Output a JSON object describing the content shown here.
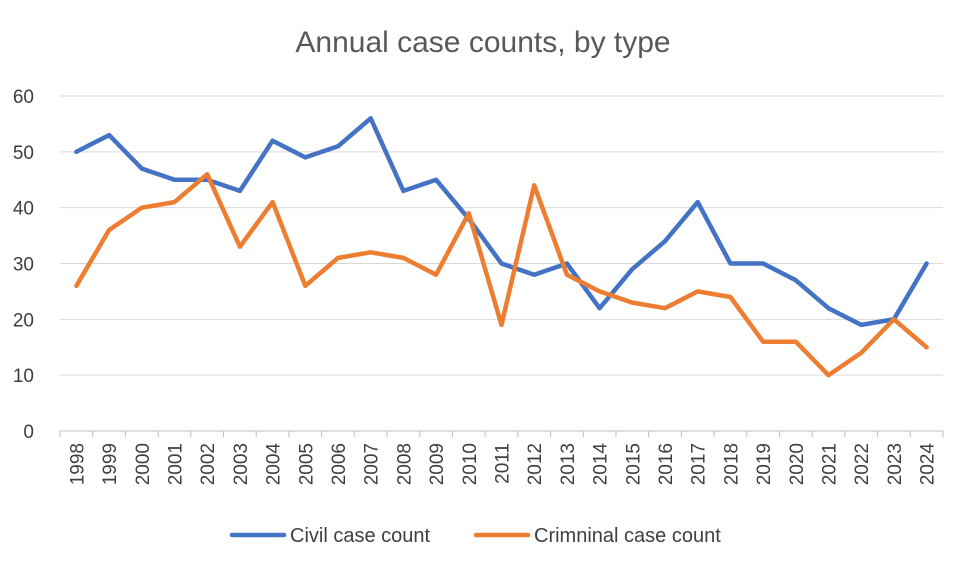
{
  "chart_data": {
    "type": "line",
    "title": "Annual case counts, by type",
    "xlabel": "",
    "ylabel": "",
    "ylim": [
      0,
      60
    ],
    "yticks": [
      0,
      10,
      20,
      30,
      40,
      50,
      60
    ],
    "grid": true,
    "legend_position": "bottom",
    "categories": [
      "1998",
      "1999",
      "2000",
      "2001",
      "2002",
      "2003",
      "2004",
      "2005",
      "2006",
      "2007",
      "2008",
      "2009",
      "2010",
      "2011",
      "2012",
      "2013",
      "2014",
      "2015",
      "2016",
      "2017",
      "2018",
      "2019",
      "2020",
      "2021",
      "2022",
      "2023",
      "2024"
    ],
    "series": [
      {
        "name": "Civil case count",
        "color": "#4472C4",
        "values": [
          50,
          53,
          47,
          45,
          45,
          43,
          52,
          49,
          51,
          56,
          43,
          45,
          38,
          30,
          28,
          30,
          22,
          29,
          34,
          41,
          30,
          30,
          27,
          22,
          19,
          20,
          30
        ]
      },
      {
        "name": "Crimninal case count",
        "color": "#ED7D31",
        "values": [
          26,
          36,
          40,
          41,
          46,
          33,
          41,
          26,
          31,
          32,
          31,
          28,
          39,
          19,
          44,
          28,
          25,
          23,
          22,
          25,
          24,
          16,
          16,
          10,
          14,
          20,
          15
        ]
      }
    ]
  }
}
